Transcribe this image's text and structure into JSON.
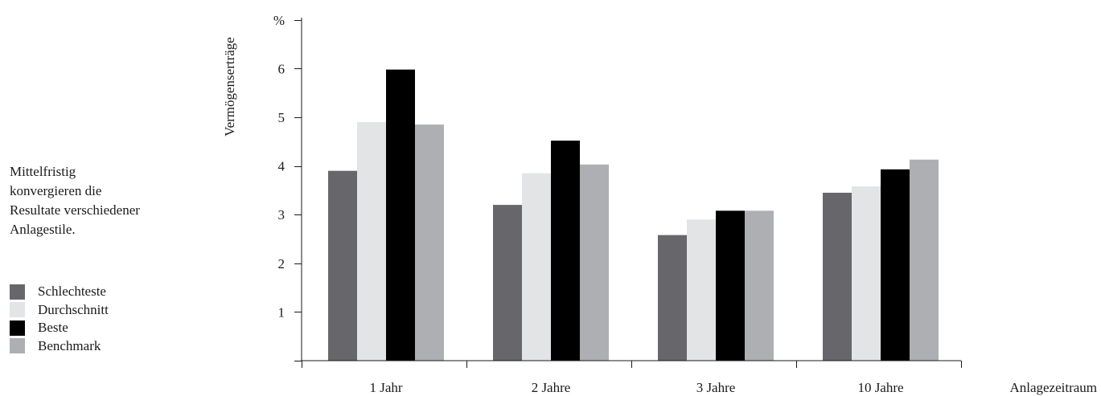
{
  "caption": "Mittelfristig\nkonvergieren die\nResultate verschiedener\nAnlagestile.",
  "chart_data": {
    "type": "bar",
    "categories": [
      "1 Jahr",
      "2 Jahre",
      "3 Jahre",
      "10 Jahre"
    ],
    "series": [
      {
        "name": "Schlechteste",
        "values": [
          3.9,
          3.2,
          2.58,
          3.45
        ],
        "color": "#67676b"
      },
      {
        "name": "Durchschnitt",
        "values": [
          4.9,
          3.85,
          2.9,
          3.58
        ],
        "color": "#e3e4e5"
      },
      {
        "name": "Beste",
        "values": [
          5.98,
          4.52,
          3.08,
          3.93
        ],
        "color": "#000000"
      },
      {
        "name": "Benchmark",
        "values": [
          4.85,
          4.03,
          3.08,
          4.13
        ],
        "color": "#aeafb2"
      }
    ],
    "title": "",
    "ylabel": "Vermögenserträge",
    "yunit": "%",
    "xlabel": "Anlagezeitraum",
    "ylim": [
      0,
      7
    ],
    "yticks": [
      "1",
      "2",
      "3",
      "4",
      "5",
      "6"
    ],
    "grid": false,
    "legend_position": "left"
  }
}
